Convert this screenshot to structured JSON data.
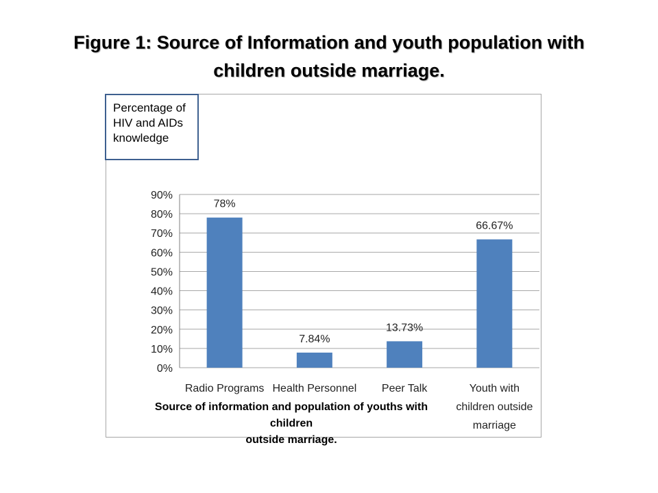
{
  "slide": {
    "title_line1": "Figure 1: Source of Information and youth population with",
    "title_line2": "children outside marriage."
  },
  "chart_data": {
    "type": "bar",
    "ylabel_lines": [
      "Percentage of",
      "HIV and AIDs",
      "knowledge"
    ],
    "xlabel_lines": [
      "Source of information and population of youths with children",
      "outside marriage."
    ],
    "categories": [
      [
        "Radio Programs"
      ],
      [
        "Health Personnel"
      ],
      [
        "Peer Talk"
      ],
      [
        "Youth with",
        "children outside",
        "marriage"
      ]
    ],
    "values": [
      78,
      7.84,
      13.73,
      66.67
    ],
    "data_labels": [
      "78%",
      "7.84%",
      "13.73%",
      "66.67%"
    ],
    "yticks": [
      "0%",
      "10%",
      "20%",
      "30%",
      "40%",
      "50%",
      "60%",
      "70%",
      "80%",
      "90%"
    ],
    "ylim": [
      0,
      90
    ],
    "grid": true,
    "bar_color": "#4f81bd",
    "grid_color": "#a6a6a6"
  }
}
